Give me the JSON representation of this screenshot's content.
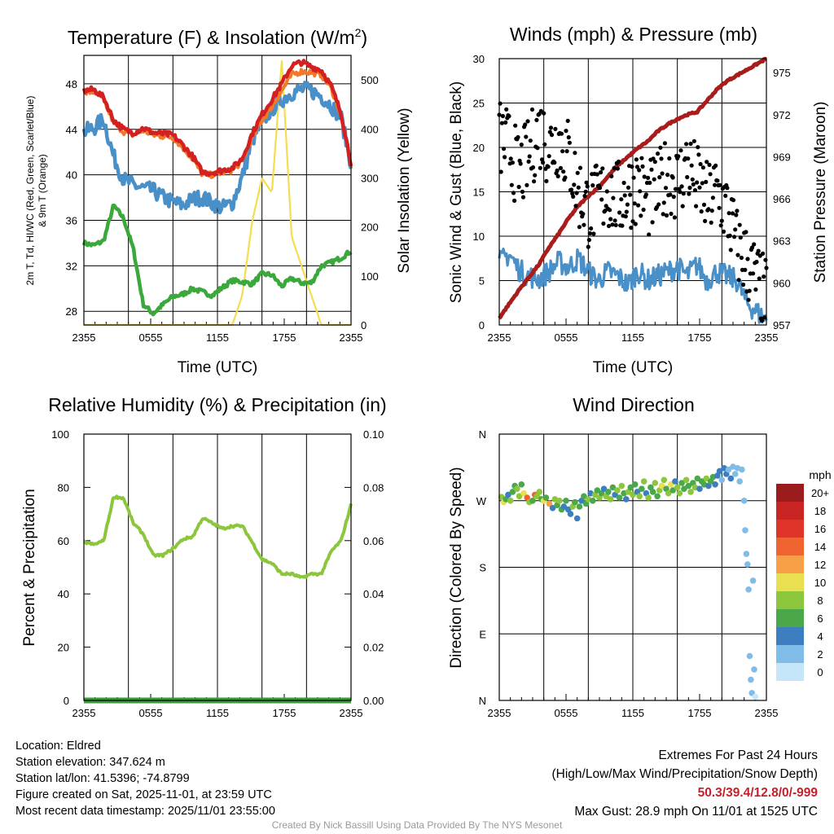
{
  "chart_data": [
    {
      "id": "temp",
      "type": "line",
      "title": "Temperature (F) & Insolation (W/m²)",
      "title_main": "Temperature (F) & Insolation (W/m",
      "title_sup": "2",
      "title_end": ")",
      "xlabel": "Time (UTC)",
      "ylabel_line1": "2m T, Td, HI/WC (Red, Green, Scarlet/Blue)",
      "ylabel_line2": "& 9m T (Orange)",
      "y2label": "Solar Insolation (Yellow)",
      "xticks": [
        "2355",
        "0555",
        "1155",
        "1755",
        "2355"
      ],
      "ylim": [
        26.8,
        50.5
      ],
      "yticks": [
        28,
        32,
        36,
        40,
        44,
        48
      ],
      "y2lim": [
        0,
        550
      ],
      "y2ticks": [
        0,
        100,
        200,
        300,
        400,
        500
      ],
      "series": [
        {
          "name": "2m T",
          "color": "#d42020",
          "axis": "left",
          "values": [
            47.4,
            47.5,
            46.8,
            44.8,
            44.0,
            43.7,
            44.1,
            43.7,
            43.6,
            43.5,
            42.6,
            41.6,
            40.2,
            40.2,
            40.4,
            40.6,
            41.4,
            43.6,
            45.3,
            46.6,
            48.0,
            49.6,
            49.9,
            49.5,
            49.2,
            47.8,
            45.4,
            41.0
          ]
        },
        {
          "name": "9m T",
          "color": "#f07a28",
          "axis": "left",
          "values": [
            47.2,
            47.3,
            46.6,
            44.6,
            43.8,
            43.5,
            43.9,
            43.5,
            43.4,
            43.3,
            42.4,
            41.4,
            40.0,
            40.0,
            40.2,
            40.4,
            41.2,
            43.2,
            44.8,
            46.0,
            47.4,
            48.8,
            49.1,
            49.0,
            48.8,
            47.6,
            45.2,
            40.8
          ]
        },
        {
          "name": "HI/WC",
          "color": "#4a90c8",
          "axis": "left",
          "values": [
            43.8,
            44.1,
            44.9,
            41.6,
            39.6,
            39.1,
            38.8,
            38.6,
            38.0,
            37.6,
            37.3,
            37.9,
            38.0,
            37.5,
            37.1,
            37.5,
            39.8,
            43.0,
            44.6,
            45.8,
            46.6,
            47.2,
            47.5,
            47.4,
            46.9,
            46.1,
            45.0,
            41.0
          ]
        },
        {
          "name": "Dewpoint",
          "color": "#3aa83a",
          "axis": "left",
          "values": [
            34.0,
            33.8,
            34.2,
            37.3,
            36.2,
            33.5,
            28.6,
            27.8,
            28.6,
            29.3,
            29.5,
            30.0,
            29.7,
            29.4,
            30.1,
            30.7,
            30.6,
            30.4,
            31.3,
            31.2,
            30.2,
            30.9,
            30.5,
            30.5,
            32.0,
            32.3,
            32.7,
            33.3
          ]
        },
        {
          "name": "Solar Insolation",
          "color": "#f5dd50",
          "axis": "right",
          "values": [
            0,
            0,
            0,
            0,
            0,
            0,
            0,
            0,
            0,
            0,
            0,
            0,
            0,
            0,
            0,
            0,
            60,
            210,
            300,
            270,
            540,
            180,
            120,
            60,
            0,
            0,
            0,
            0
          ]
        }
      ]
    },
    {
      "id": "wind",
      "type": "line",
      "title": "Winds (mph) & Pressure (mb)",
      "xlabel": "Time (UTC)",
      "ylabel": "Sonic Wind & Gust (Blue, Black)",
      "y2label": "Station Pressure (Maroon)",
      "xticks": [
        "2355",
        "0555",
        "1155",
        "1755",
        "2355"
      ],
      "ylim": [
        0,
        30
      ],
      "yticks": [
        0,
        5,
        10,
        15,
        20,
        25,
        30
      ],
      "y2lim": [
        957,
        976
      ],
      "y2ticks": [
        957,
        960,
        963,
        966,
        969,
        972,
        975
      ],
      "series": [
        {
          "name": "Sonic Wind",
          "color": "#4a90c8",
          "axis": "left",
          "values": [
            7.0,
            8.0,
            6.2,
            5.5,
            5.2,
            6.0,
            7.1,
            6.5,
            7.5,
            6.0,
            5.0,
            6.0,
            5.5,
            4.5,
            6.1,
            5.0,
            5.5,
            6.0,
            6.5,
            5.6,
            6.8,
            5.0,
            6.0,
            5.5,
            5.0,
            2.5,
            1.5,
            0.5
          ]
        },
        {
          "name": "Gust",
          "color": "#000000",
          "axis": "left",
          "values": [
            21,
            20,
            17,
            19,
            22,
            20,
            21,
            19,
            15,
            13,
            14,
            15,
            14,
            15,
            16,
            14,
            15,
            17,
            16,
            18,
            16,
            14,
            15,
            13,
            9,
            7,
            5,
            3
          ]
        },
        {
          "name": "Station Pressure",
          "color": "#a81c1c",
          "axis": "right",
          "values": [
            957.5,
            958.5,
            959.5,
            960.4,
            961.3,
            962.5,
            963.5,
            964.6,
            965.5,
            966.2,
            966.8,
            967.6,
            968.4,
            969.0,
            969.6,
            970.1,
            970.8,
            971.3,
            971.7,
            972.0,
            972.2,
            973.0,
            973.8,
            974.4,
            974.8,
            975.2,
            975.6,
            976.0
          ]
        }
      ]
    },
    {
      "id": "rh",
      "type": "line",
      "title": "Relative Humidity (%) & Precipitation (in)",
      "xlabel": "",
      "ylabel": "Percent & Precipitation",
      "xticks": [
        "2355",
        "0555",
        "1155",
        "1755",
        "2355"
      ],
      "ylim": [
        0,
        100
      ],
      "yticks": [
        "0",
        "20",
        "40",
        "60",
        "80",
        "100"
      ],
      "y2lim": [
        0,
        0.1
      ],
      "y2ticks": [
        "0.00",
        "0.02",
        "0.04",
        "0.06",
        "0.08",
        "0.10"
      ],
      "series": [
        {
          "name": "Relative Humidity",
          "color": "#8cc63c",
          "axis": "left",
          "values": [
            59.5,
            58.5,
            60.0,
            76.5,
            76.0,
            66.5,
            62.5,
            54.5,
            54.5,
            57.0,
            60.5,
            61.5,
            68.5,
            66.5,
            64.5,
            65.5,
            65.5,
            59.5,
            53.0,
            51.5,
            47.5,
            47.5,
            46.0,
            47.5,
            47.5,
            56.0,
            60.0,
            73.5
          ]
        },
        {
          "name": "Precipitation",
          "color": "#3a9a3a",
          "axis": "right",
          "values": [
            0,
            0,
            0,
            0,
            0,
            0,
            0,
            0,
            0,
            0,
            0,
            0,
            0,
            0,
            0,
            0,
            0,
            0,
            0,
            0,
            0,
            0,
            0,
            0,
            0,
            0,
            0,
            0
          ]
        }
      ]
    },
    {
      "id": "wdir",
      "type": "scatter",
      "title": "Wind Direction",
      "ylabel": "Direction (Colored By Speed)",
      "xticks": [
        "2355",
        "0555",
        "1155",
        "1755",
        "2355"
      ],
      "ycats": [
        "N",
        "E",
        "S",
        "W",
        "N"
      ],
      "legend_title": "mph",
      "legend_labels": [
        "20+",
        "18",
        "16",
        "14",
        "12",
        "10",
        "8",
        "6",
        "4",
        "2",
        "0"
      ],
      "legend_colors": [
        "#9b1c1c",
        "#c82424",
        "#e0342a",
        "#f06432",
        "#f8a048",
        "#e8e050",
        "#8cc63c",
        "#4aa84a",
        "#3c7ec0",
        "#80bce8",
        "#c4e6f8"
      ],
      "points": [
        {
          "t": 0.2,
          "dir": 275,
          "spd": 7
        },
        {
          "t": 0.4,
          "dir": 268,
          "spd": 10
        },
        {
          "t": 0.6,
          "dir": 272,
          "spd": 6
        },
        {
          "t": 0.8,
          "dir": 278,
          "spd": 4
        },
        {
          "t": 1.0,
          "dir": 270,
          "spd": 8
        },
        {
          "t": 1.2,
          "dir": 282,
          "spd": 6
        },
        {
          "t": 1.4,
          "dir": 290,
          "spd": 5
        },
        {
          "t": 1.6,
          "dir": 286,
          "spd": 7
        },
        {
          "t": 1.8,
          "dir": 276,
          "spd": 8
        },
        {
          "t": 2.0,
          "dir": 292,
          "spd": 6
        },
        {
          "t": 2.2,
          "dir": 280,
          "spd": 9
        },
        {
          "t": 2.5,
          "dir": 274,
          "spd": 13
        },
        {
          "t": 2.7,
          "dir": 268,
          "spd": 8
        },
        {
          "t": 3.0,
          "dir": 270,
          "spd": 6
        },
        {
          "t": 3.2,
          "dir": 278,
          "spd": 14
        },
        {
          "t": 3.4,
          "dir": 276,
          "spd": 7
        },
        {
          "t": 3.6,
          "dir": 282,
          "spd": 8
        },
        {
          "t": 3.8,
          "dir": 272,
          "spd": 5
        },
        {
          "t": 4.0,
          "dir": 270,
          "spd": 9
        },
        {
          "t": 4.2,
          "dir": 274,
          "spd": 6
        },
        {
          "t": 4.5,
          "dir": 266,
          "spd": 12
        },
        {
          "t": 4.8,
          "dir": 260,
          "spd": 4
        },
        {
          "t": 5.0,
          "dir": 272,
          "spd": 7
        },
        {
          "t": 5.2,
          "dir": 264,
          "spd": 5
        },
        {
          "t": 5.4,
          "dir": 270,
          "spd": 8
        },
        {
          "t": 5.6,
          "dir": 258,
          "spd": 6
        },
        {
          "t": 5.8,
          "dir": 262,
          "spd": 4
        },
        {
          "t": 6.0,
          "dir": 270,
          "spd": 6
        },
        {
          "t": 6.2,
          "dir": 258,
          "spd": 4
        },
        {
          "t": 6.4,
          "dir": 252,
          "spd": 3
        },
        {
          "t": 6.6,
          "dir": 262,
          "spd": 7
        },
        {
          "t": 6.8,
          "dir": 268,
          "spd": 5
        },
        {
          "t": 7.0,
          "dir": 246,
          "spd": 3
        },
        {
          "t": 7.2,
          "dir": 262,
          "spd": 6
        },
        {
          "t": 7.4,
          "dir": 270,
          "spd": 4
        },
        {
          "t": 7.6,
          "dir": 276,
          "spd": 5
        },
        {
          "t": 7.8,
          "dir": 266,
          "spd": 6
        },
        {
          "t": 8.0,
          "dir": 272,
          "spd": 8
        },
        {
          "t": 8.2,
          "dir": 280,
          "spd": 4
        },
        {
          "t": 8.4,
          "dir": 270,
          "spd": 6
        },
        {
          "t": 8.6,
          "dir": 278,
          "spd": 7
        },
        {
          "t": 8.8,
          "dir": 284,
          "spd": 5
        },
        {
          "t": 9.0,
          "dir": 274,
          "spd": 8
        },
        {
          "t": 9.2,
          "dir": 280,
          "spd": 6
        },
        {
          "t": 9.4,
          "dir": 286,
          "spd": 4
        },
        {
          "t": 9.6,
          "dir": 276,
          "spd": 7
        },
        {
          "t": 9.8,
          "dir": 282,
          "spd": 5
        },
        {
          "t": 10.0,
          "dir": 272,
          "spd": 8
        },
        {
          "t": 10.2,
          "dir": 288,
          "spd": 6
        },
        {
          "t": 10.4,
          "dir": 278,
          "spd": 4
        },
        {
          "t": 10.6,
          "dir": 284,
          "spd": 7
        },
        {
          "t": 10.8,
          "dir": 274,
          "spd": 6
        },
        {
          "t": 11.0,
          "dir": 290,
          "spd": 8
        },
        {
          "t": 11.2,
          "dir": 280,
          "spd": 5
        },
        {
          "t": 11.4,
          "dir": 272,
          "spd": 4
        },
        {
          "t": 11.6,
          "dir": 282,
          "spd": 7
        },
        {
          "t": 11.8,
          "dir": 288,
          "spd": 6
        },
        {
          "t": 12.0,
          "dir": 278,
          "spd": 8
        },
        {
          "t": 12.2,
          "dir": 292,
          "spd": 5
        },
        {
          "t": 12.4,
          "dir": 282,
          "spd": 3
        },
        {
          "t": 12.6,
          "dir": 276,
          "spd": 7
        },
        {
          "t": 12.8,
          "dir": 286,
          "spd": 6
        },
        {
          "t": 13.0,
          "dir": 296,
          "spd": 8
        },
        {
          "t": 13.2,
          "dir": 280,
          "spd": 4
        },
        {
          "t": 13.4,
          "dir": 274,
          "spd": 7
        },
        {
          "t": 13.6,
          "dir": 288,
          "spd": 6
        },
        {
          "t": 13.8,
          "dir": 282,
          "spd": 5
        },
        {
          "t": 14.0,
          "dir": 294,
          "spd": 8
        },
        {
          "t": 14.2,
          "dir": 276,
          "spd": 6
        },
        {
          "t": 14.4,
          "dir": 284,
          "spd": 7
        },
        {
          "t": 14.6,
          "dir": 290,
          "spd": 9
        },
        {
          "t": 14.8,
          "dir": 298,
          "spd": 8
        },
        {
          "t": 15.0,
          "dir": 286,
          "spd": 6
        },
        {
          "t": 15.2,
          "dir": 280,
          "spd": 8
        },
        {
          "t": 15.4,
          "dir": 292,
          "spd": 10
        },
        {
          "t": 15.6,
          "dir": 284,
          "spd": 6
        },
        {
          "t": 15.8,
          "dir": 296,
          "spd": 4
        },
        {
          "t": 16.0,
          "dir": 288,
          "spd": 7
        },
        {
          "t": 16.2,
          "dir": 280,
          "spd": 8
        },
        {
          "t": 16.4,
          "dir": 294,
          "spd": 6
        },
        {
          "t": 16.6,
          "dir": 286,
          "spd": 5
        },
        {
          "t": 16.8,
          "dir": 298,
          "spd": 7
        },
        {
          "t": 17.0,
          "dir": 290,
          "spd": 6
        },
        {
          "t": 17.2,
          "dir": 282,
          "spd": 8
        },
        {
          "t": 17.4,
          "dir": 294,
          "spd": 5
        },
        {
          "t": 17.6,
          "dir": 288,
          "spd": 7
        },
        {
          "t": 17.8,
          "dir": 300,
          "spd": 6
        },
        {
          "t": 18.0,
          "dir": 286,
          "spd": 4
        },
        {
          "t": 18.2,
          "dir": 296,
          "spd": 6
        },
        {
          "t": 18.4,
          "dir": 292,
          "spd": 5
        },
        {
          "t": 18.6,
          "dir": 300,
          "spd": 7
        },
        {
          "t": 18.8,
          "dir": 290,
          "spd": 4
        },
        {
          "t": 19.0,
          "dir": 296,
          "spd": 6
        },
        {
          "t": 19.2,
          "dir": 302,
          "spd": 5
        },
        {
          "t": 19.4,
          "dir": 292,
          "spd": 4
        },
        {
          "t": 19.6,
          "dir": 304,
          "spd": 3
        },
        {
          "t": 19.8,
          "dir": 310,
          "spd": 4
        },
        {
          "t": 20.0,
          "dir": 298,
          "spd": 2
        },
        {
          "t": 20.2,
          "dir": 314,
          "spd": 3
        },
        {
          "t": 20.4,
          "dir": 306,
          "spd": 4
        },
        {
          "t": 20.6,
          "dir": 312,
          "spd": 2
        },
        {
          "t": 20.8,
          "dir": 300,
          "spd": 3
        },
        {
          "t": 21.0,
          "dir": 316,
          "spd": 1
        },
        {
          "t": 21.2,
          "dir": 306,
          "spd": 2
        },
        {
          "t": 21.4,
          "dir": 314,
          "spd": 1
        },
        {
          "t": 21.6,
          "dir": 296,
          "spd": 1
        },
        {
          "t": 21.8,
          "dir": 312,
          "spd": 1
        },
        {
          "t": 22.0,
          "dir": 270,
          "spd": 1
        },
        {
          "t": 22.1,
          "dir": 230,
          "spd": 1
        },
        {
          "t": 22.2,
          "dir": 198,
          "spd": 1
        },
        {
          "t": 22.3,
          "dir": 184,
          "spd": 1
        },
        {
          "t": 22.4,
          "dir": 150,
          "spd": 1
        },
        {
          "t": 22.5,
          "dir": 60,
          "spd": 1
        },
        {
          "t": 22.6,
          "dir": 28,
          "spd": 1
        },
        {
          "t": 22.7,
          "dir": 10,
          "spd": 1
        },
        {
          "t": 22.8,
          "dir": 162,
          "spd": 1
        },
        {
          "t": 22.9,
          "dir": 42,
          "spd": 1
        },
        {
          "t": 23.0,
          "dir": 5,
          "spd": 0
        }
      ]
    }
  ],
  "info": {
    "location": "Location: Eldred",
    "elevation": "Station elevation: 347.624 m",
    "latlon": "Station lat/lon: 41.5396; -74.8799",
    "created": "Figure created on Sat, 2025-11-01, at 23:59 UTC",
    "recent": "Most recent data timestamp: 2025/11/01 23:55:00"
  },
  "extremes": {
    "title": "Extremes For Past 24 Hours",
    "subtitle": "(High/Low/Max Wind/Precipitation/Snow Depth)",
    "values": "50.3/39.4/12.8/0/-999",
    "gust": "Max Gust: 28.9 mph On 11/01 at 1525 UTC"
  },
  "credit": "Created By Nick Bassill Using Data Provided By The NYS Mesonet"
}
